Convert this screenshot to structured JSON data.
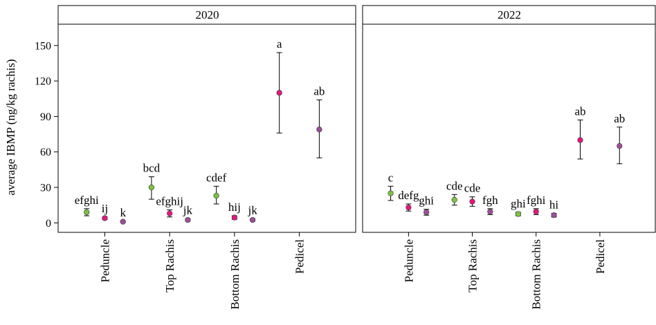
{
  "chart_data": {
    "type": "scatter",
    "ylabel": "average IBMP (ng/kg rachis)",
    "xlabel": "",
    "ylim": [
      -8,
      168
    ],
    "yticks": [
      0,
      30,
      60,
      90,
      120,
      150
    ],
    "categories": [
      "Peduncle",
      "Top Rachis",
      "Bottom Rachis",
      "Pedicel"
    ],
    "colors": {
      "green": "#7cc242",
      "magenta": "#e3177d",
      "purple": "#9b4f9b"
    },
    "panels": [
      {
        "title": "2020",
        "points": [
          {
            "category": "Peduncle",
            "color": "green",
            "y": 9,
            "lo": 6,
            "hi": 12,
            "label": "efghi"
          },
          {
            "category": "Peduncle",
            "color": "magenta",
            "y": 4,
            "lo": 3,
            "hi": 5,
            "label": "ij"
          },
          {
            "category": "Peduncle",
            "color": "purple",
            "y": 1,
            "lo": 0.5,
            "hi": 1.5,
            "label": "k"
          },
          {
            "category": "Top Rachis",
            "color": "green",
            "y": 30,
            "lo": 20,
            "hi": 39,
            "label": "bcd"
          },
          {
            "category": "Top Rachis",
            "color": "magenta",
            "y": 8,
            "lo": 5,
            "hi": 11,
            "label": "efghij"
          },
          {
            "category": "Top Rachis",
            "color": "purple",
            "y": 2.5,
            "lo": 1.5,
            "hi": 3.5,
            "label": "jk"
          },
          {
            "category": "Bottom Rachis",
            "color": "green",
            "y": 23,
            "lo": 16,
            "hi": 31,
            "label": "cdef"
          },
          {
            "category": "Bottom Rachis",
            "color": "magenta",
            "y": 4.5,
            "lo": 3,
            "hi": 6,
            "label": "hij"
          },
          {
            "category": "Bottom Rachis",
            "color": "purple",
            "y": 2.5,
            "lo": 1.5,
            "hi": 3.5,
            "label": "jk"
          },
          {
            "category": "Pedicel",
            "color": "magenta",
            "y": 110,
            "lo": 76,
            "hi": 144,
            "label": "a"
          },
          {
            "category": "Pedicel",
            "color": "purple",
            "y": 79,
            "lo": 55,
            "hi": 104,
            "label": "ab"
          }
        ]
      },
      {
        "title": "2022",
        "points": [
          {
            "category": "Peduncle",
            "color": "green",
            "y": 25,
            "lo": 19,
            "hi": 31,
            "label": "c"
          },
          {
            "category": "Peduncle",
            "color": "magenta",
            "y": 13,
            "lo": 10,
            "hi": 16,
            "label": "defg"
          },
          {
            "category": "Peduncle",
            "color": "purple",
            "y": 9,
            "lo": 6.5,
            "hi": 11.5,
            "label": "ghi"
          },
          {
            "category": "Top Rachis",
            "color": "green",
            "y": 19.5,
            "lo": 15,
            "hi": 24,
            "label": "cde"
          },
          {
            "category": "Top Rachis",
            "color": "magenta",
            "y": 18,
            "lo": 14,
            "hi": 22,
            "label": "cde"
          },
          {
            "category": "Top Rachis",
            "color": "purple",
            "y": 9.5,
            "lo": 7,
            "hi": 12,
            "label": "fgh"
          },
          {
            "category": "Bottom Rachis",
            "color": "green",
            "y": 7.5,
            "lo": 6,
            "hi": 9,
            "label": "ghi"
          },
          {
            "category": "Bottom Rachis",
            "color": "magenta",
            "y": 9.5,
            "lo": 7,
            "hi": 12,
            "label": "fghi"
          },
          {
            "category": "Bottom Rachis",
            "color": "purple",
            "y": 6.5,
            "lo": 5,
            "hi": 8,
            "label": "hi"
          },
          {
            "category": "Pedicel",
            "color": "magenta",
            "y": 70,
            "lo": 54,
            "hi": 87,
            "label": "ab"
          },
          {
            "category": "Pedicel",
            "color": "purple",
            "y": 65,
            "lo": 50,
            "hi": 81,
            "label": "ab"
          }
        ]
      }
    ]
  }
}
